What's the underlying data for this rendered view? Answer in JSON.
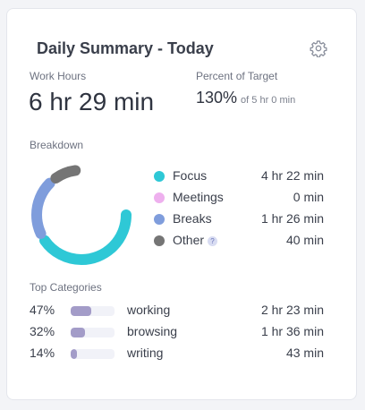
{
  "card": {
    "title": "Daily Summary - Today",
    "settings_icon": "gear-icon"
  },
  "work_hours": {
    "label": "Work Hours",
    "value": "6 hr 29 min"
  },
  "percent_of_target": {
    "label": "Percent of Target",
    "value": "130%",
    "sub": "of 5 hr 0 min"
  },
  "breakdown": {
    "label": "Breakdown",
    "items": [
      {
        "name": "Focus",
        "value": "4 hr 22 min",
        "minutes": 262,
        "color": "#2ec8d6"
      },
      {
        "name": "Meetings",
        "value": "0 min",
        "minutes": 0,
        "color": "#eeb0ee"
      },
      {
        "name": "Breaks",
        "value": "1 hr 26 min",
        "minutes": 86,
        "color": "#7f9ddc"
      },
      {
        "name": "Other",
        "value": "40 min",
        "minutes": 40,
        "color": "#757575",
        "help": "?"
      }
    ]
  },
  "top_categories": {
    "label": "Top Categories",
    "bar_color": "#a39cc8",
    "items": [
      {
        "pct": "47%",
        "fraction": 0.47,
        "name": "working",
        "value": "2 hr 23 min"
      },
      {
        "pct": "32%",
        "fraction": 0.32,
        "name": "browsing",
        "value": "1 hr 36 min"
      },
      {
        "pct": "14%",
        "fraction": 0.14,
        "name": "writing",
        "value": "43 min"
      }
    ]
  }
}
